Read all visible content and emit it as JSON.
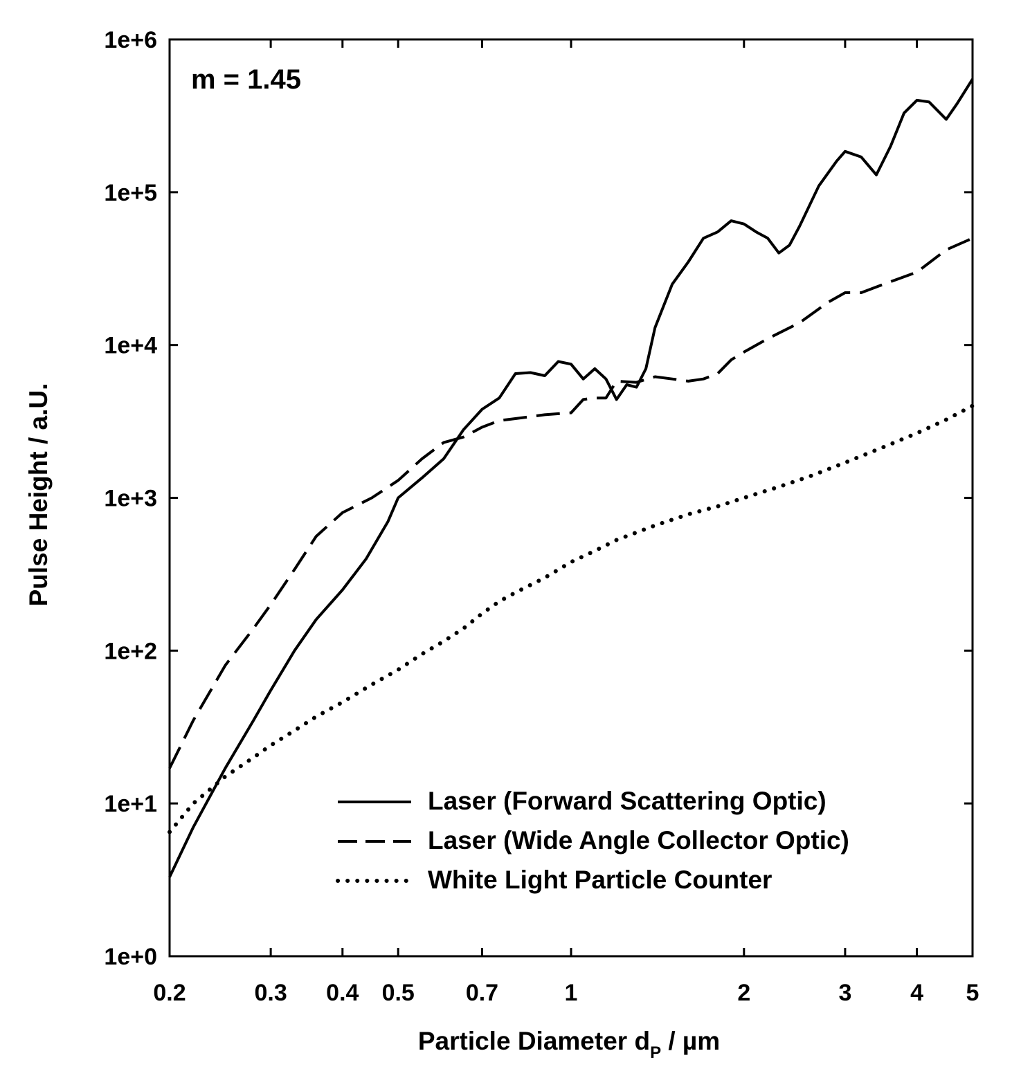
{
  "chart_data": {
    "type": "line",
    "annotation": "m = 1.45",
    "xlabel": {
      "main": "Particle Diameter d",
      "sub": "P",
      "unit": "  / µm"
    },
    "ylabel": "Pulse Height  / a.U.",
    "x_scale": "log",
    "y_scale": "log",
    "xlim": [
      0.2,
      5
    ],
    "ylim": [
      1,
      1000000
    ],
    "x_ticks": [
      {
        "value": 0.2,
        "label": "0.2"
      },
      {
        "value": 0.3,
        "label": "0.3"
      },
      {
        "value": 0.4,
        "label": "0.4"
      },
      {
        "value": 0.5,
        "label": "0.5"
      },
      {
        "value": 0.7,
        "label": "0.7"
      },
      {
        "value": 1,
        "label": "1"
      },
      {
        "value": 2,
        "label": "2"
      },
      {
        "value": 3,
        "label": "3"
      },
      {
        "value": 4,
        "label": "4"
      },
      {
        "value": 5,
        "label": "5"
      }
    ],
    "y_ticks": [
      {
        "value": 1,
        "label": "1e+0"
      },
      {
        "value": 10,
        "label": "1e+1"
      },
      {
        "value": 100,
        "label": "1e+2"
      },
      {
        "value": 1000,
        "label": "1e+3"
      },
      {
        "value": 10000,
        "label": "1e+4"
      },
      {
        "value": 100000,
        "label": "1e+5"
      },
      {
        "value": 1000000,
        "label": "1e+6"
      }
    ],
    "grid": false,
    "legend_position": "bottom-right",
    "series": [
      {
        "name": "Laser (Forward Scattering Optic)",
        "style": "solid",
        "x": [
          0.2,
          0.22,
          0.25,
          0.28,
          0.3,
          0.33,
          0.36,
          0.4,
          0.44,
          0.48,
          0.5,
          0.55,
          0.6,
          0.65,
          0.7,
          0.75,
          0.8,
          0.85,
          0.9,
          0.95,
          1.0,
          1.05,
          1.1,
          1.15,
          1.2,
          1.25,
          1.3,
          1.35,
          1.4,
          1.5,
          1.6,
          1.7,
          1.8,
          1.9,
          2.0,
          2.1,
          2.2,
          2.3,
          2.4,
          2.5,
          2.7,
          2.9,
          3.0,
          3.2,
          3.4,
          3.6,
          3.8,
          4.0,
          4.2,
          4.5,
          4.7,
          5.0
        ],
        "y": [
          3.3,
          7,
          17,
          35,
          55,
          100,
          160,
          250,
          400,
          700,
          1000,
          1350,
          1800,
          2800,
          3800,
          4500,
          6500,
          6600,
          6300,
          7800,
          7500,
          6000,
          7000,
          6000,
          4400,
          5500,
          5300,
          7000,
          13000,
          25000,
          35000,
          50000,
          55000,
          65000,
          62000,
          55000,
          50000,
          40000,
          45000,
          60000,
          110000,
          160000,
          185000,
          170000,
          130000,
          200000,
          330000,
          400000,
          390000,
          300000,
          380000,
          550000
        ]
      },
      {
        "name": "Laser (Wide Angle Collector Optic)",
        "style": "dashed",
        "x": [
          0.2,
          0.22,
          0.25,
          0.28,
          0.3,
          0.33,
          0.36,
          0.4,
          0.45,
          0.5,
          0.55,
          0.6,
          0.65,
          0.7,
          0.75,
          0.8,
          0.9,
          1.0,
          1.05,
          1.1,
          1.15,
          1.2,
          1.3,
          1.4,
          1.5,
          1.6,
          1.7,
          1.8,
          1.9,
          2.0,
          2.2,
          2.5,
          2.8,
          3.0,
          3.2,
          3.5,
          4.0,
          4.5,
          5.0
        ],
        "y": [
          17,
          35,
          80,
          140,
          200,
          340,
          560,
          800,
          1000,
          1300,
          1800,
          2300,
          2500,
          2900,
          3200,
          3300,
          3500,
          3600,
          4400,
          4500,
          4500,
          5800,
          5700,
          6200,
          6000,
          5800,
          6000,
          6500,
          8000,
          9000,
          11000,
          14000,
          19000,
          22000,
          22000,
          25000,
          30000,
          42000,
          50000
        ]
      },
      {
        "name": "White Light Particle Counter",
        "style": "dotted",
        "x": [
          0.2,
          0.22,
          0.25,
          0.28,
          0.3,
          0.33,
          0.36,
          0.4,
          0.45,
          0.5,
          0.55,
          0.6,
          0.65,
          0.7,
          0.75,
          0.8,
          0.9,
          1.0,
          1.1,
          1.2,
          1.4,
          1.6,
          1.8,
          2.0,
          2.3,
          2.6,
          3.0,
          3.5,
          4.0,
          4.5,
          5.0
        ],
        "y": [
          6.5,
          10,
          15,
          20,
          24,
          30,
          37,
          46,
          60,
          75,
          95,
          115,
          140,
          175,
          210,
          240,
          300,
          380,
          450,
          530,
          660,
          780,
          880,
          1000,
          1180,
          1380,
          1700,
          2150,
          2650,
          3250,
          4000
        ]
      }
    ]
  }
}
